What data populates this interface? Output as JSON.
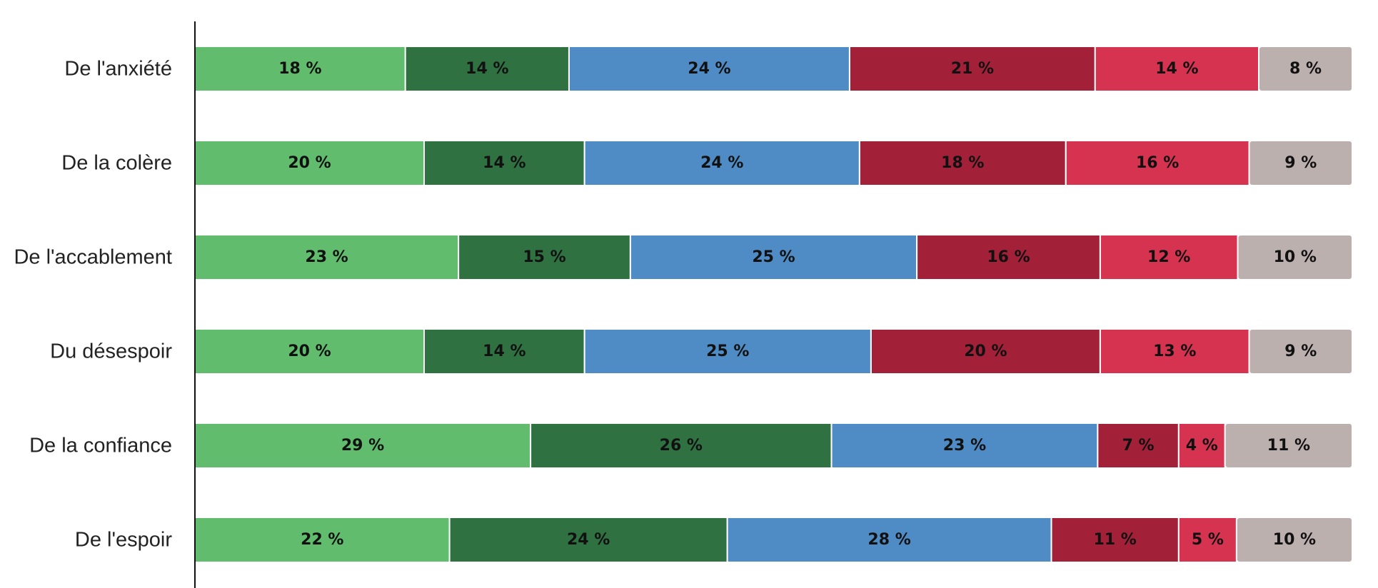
{
  "chart_data": {
    "type": "bar",
    "orientation": "horizontal",
    "stacked": true,
    "normalized_percent": true,
    "categories": [
      "De l'anxiété",
      "De la colère",
      "De l'accablement",
      "Du désespoir",
      "De la confiance",
      "De l'espoir"
    ],
    "series": [
      {
        "color": "#61bd6d",
        "values": [
          18,
          20,
          23,
          20,
          29,
          22
        ],
        "labels": [
          "18 %",
          "20 %",
          "23 %",
          "20 %",
          "29 %",
          "22 %"
        ]
      },
      {
        "color": "#2f7141",
        "values": [
          14,
          14,
          15,
          14,
          26,
          24
        ],
        "labels": [
          "14 %",
          "14 %",
          "15 %",
          "14 %",
          "26 %",
          "24 %"
        ]
      },
      {
        "color": "#4f8cc6",
        "values": [
          24,
          24,
          25,
          25,
          23,
          28
        ],
        "labels": [
          "24 %",
          "24 %",
          "25 %",
          "25 %",
          "23 %",
          "28 %"
        ]
      },
      {
        "color": "#a32138",
        "values": [
          21,
          18,
          16,
          20,
          7,
          11
        ],
        "labels": [
          "21 %",
          "18 %",
          "16 %",
          "20 %",
          "7 %",
          "11 %"
        ]
      },
      {
        "color": "#d63350",
        "values": [
          14,
          16,
          12,
          13,
          4,
          5
        ],
        "labels": [
          "14 %",
          "16 %",
          "12 %",
          "13 %",
          "4 %",
          "5 %"
        ]
      },
      {
        "color": "#bcb0ae",
        "values": [
          8,
          9,
          10,
          9,
          11,
          10
        ],
        "labels": [
          "8 %",
          "9 %",
          "10 %",
          "9 %",
          "11 %",
          "10 %"
        ]
      }
    ],
    "title": "",
    "xlabel": "",
    "ylabel": "",
    "legend": "none",
    "grid": false
  }
}
